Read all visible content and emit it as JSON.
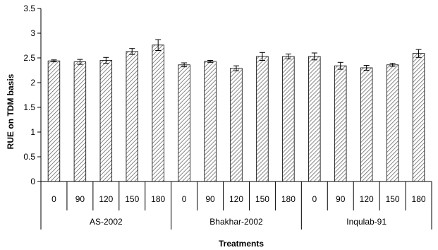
{
  "chart_data": {
    "type": "bar",
    "ylabel": "RUE on TDM basis",
    "xlabel": "Treatments",
    "ylim": [
      0,
      3.5
    ],
    "yticks": [
      "0",
      "0.5",
      "1",
      "1.5",
      "2",
      "2.5",
      "3",
      "3.5"
    ],
    "grid": false,
    "legend": "none",
    "bar_fill": "hatched",
    "groups": [
      {
        "name": "AS-2002",
        "categories": [
          "0",
          "90",
          "120",
          "150",
          "180"
        ],
        "values": [
          2.44,
          2.42,
          2.45,
          2.63,
          2.76
        ],
        "errors": [
          0.02,
          0.05,
          0.06,
          0.06,
          0.11
        ]
      },
      {
        "name": "Bhakhar-2002",
        "categories": [
          "0",
          "90",
          "120",
          "150",
          "180"
        ],
        "values": [
          2.36,
          2.43,
          2.29,
          2.53,
          2.53
        ],
        "errors": [
          0.04,
          0.02,
          0.05,
          0.08,
          0.05
        ]
      },
      {
        "name": "Inqulab-91",
        "categories": [
          "0",
          "90",
          "120",
          "150",
          "180"
        ],
        "values": [
          2.53,
          2.34,
          2.3,
          2.36,
          2.59
        ],
        "errors": [
          0.07,
          0.07,
          0.05,
          0.03,
          0.08
        ]
      }
    ]
  }
}
